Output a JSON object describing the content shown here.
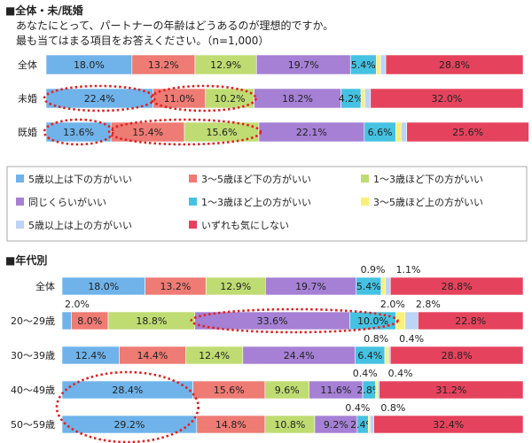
{
  "section1": {
    "heading": "■全体・未/既婚",
    "question_line1": "あなたにとって、パートナーの年齢はどうあるのが理想的ですか。",
    "question_line2": "最も当てはまる項目をお答えください。（n=1,000）"
  },
  "section2": {
    "heading": "■年代別"
  },
  "legend": [
    {
      "label": "5歳以上は下の方がいい",
      "color": "#6fb3ea"
    },
    {
      "label": "3〜5歳ほど下の方がいい",
      "color": "#ee7b74"
    },
    {
      "label": "1〜3歳ほど下の方がいい",
      "color": "#bfdc72"
    },
    {
      "label": "同じくらいがいい",
      "color": "#a580d4"
    },
    {
      "label": "1〜3歳ほど上の方がいい",
      "color": "#45c2e2"
    },
    {
      "label": "3〜5歳ほど上の方がいい",
      "color": "#f7f17a"
    },
    {
      "label": "5歳以上は上の方がいい",
      "color": "#bcd4f6"
    },
    {
      "label": "いずれも気にしない",
      "color": "#e5435d"
    }
  ],
  "chart_data": [
    {
      "type": "bar",
      "stacked": "100%",
      "orientation": "horizontal",
      "categories": [
        "全体",
        "未婚",
        "既婚"
      ],
      "series": [
        {
          "name": "5歳以上は下の方がいい",
          "values": [
            18.0,
            22.4,
            13.6
          ],
          "labels": [
            "18.0%",
            "22.4%",
            "13.6%"
          ]
        },
        {
          "name": "3〜5歳ほど下の方がいい",
          "values": [
            13.2,
            11.0,
            15.4
          ],
          "labels": [
            "13.2%",
            "11.0%",
            "15.4%"
          ]
        },
        {
          "name": "1〜3歳ほど下の方がいい",
          "values": [
            12.9,
            10.2,
            15.6
          ],
          "labels": [
            "12.9%",
            "10.2%",
            "15.6%"
          ]
        },
        {
          "name": "同じくらいがいい",
          "values": [
            19.7,
            18.2,
            22.1
          ],
          "labels": [
            "19.7%",
            "18.2%",
            "22.1%"
          ]
        },
        {
          "name": "1〜3歳ほど上の方がいい",
          "values": [
            5.4,
            4.2,
            6.6
          ],
          "labels": [
            "5.4%",
            "4.2%",
            "6.6%"
          ]
        },
        {
          "name": "3〜5歳ほど上の方がいい",
          "values": [
            0.9,
            0.8,
            1.1
          ],
          "labels": [
            "",
            "",
            ""
          ]
        },
        {
          "name": "5歳以上は上の方がいい",
          "values": [
            1.1,
            1.2,
            1.2
          ],
          "labels": [
            "",
            "",
            ""
          ]
        },
        {
          "name": "いずれも気にしない",
          "values": [
            28.8,
            32.0,
            25.6
          ],
          "labels": [
            "28.8%",
            "32.0%",
            "25.6%"
          ]
        }
      ],
      "highlights": [
        {
          "category": "未婚",
          "series": [
            "5歳以上は下の方がいい"
          ]
        },
        {
          "category": "未婚",
          "series": [
            "3〜5歳ほど下の方がいい",
            "1〜3歳ほど下の方がいい"
          ]
        },
        {
          "category": "既婚",
          "series": [
            "5歳以上は下の方がいい"
          ]
        },
        {
          "category": "既婚",
          "series": [
            "3〜5歳ほど下の方がいい",
            "1〜3歳ほど下の方がいい"
          ]
        }
      ]
    },
    {
      "type": "bar",
      "stacked": "100%",
      "orientation": "horizontal",
      "categories": [
        "全体",
        "20〜29歳",
        "30〜39歳",
        "40〜49歳",
        "50〜59歳"
      ],
      "series": [
        {
          "name": "5歳以上は下の方がいい",
          "values": [
            18.0,
            2.0,
            12.4,
            28.4,
            29.2
          ],
          "labels": [
            "18.0%",
            "",
            "12.4%",
            "28.4%",
            "29.2%"
          ]
        },
        {
          "name": "3〜5歳ほど下の方がいい",
          "values": [
            13.2,
            8.0,
            14.4,
            15.6,
            14.8
          ],
          "labels": [
            "13.2%",
            "8.0%",
            "14.4%",
            "15.6%",
            "14.8%"
          ]
        },
        {
          "name": "1〜3歳ほど下の方がいい",
          "values": [
            12.9,
            18.8,
            12.4,
            9.6,
            10.8
          ],
          "labels": [
            "12.9%",
            "18.8%",
            "12.4%",
            "9.6%",
            "10.8%"
          ]
        },
        {
          "name": "同じくらいがいい",
          "values": [
            19.7,
            33.6,
            24.4,
            11.6,
            9.2
          ],
          "labels": [
            "19.7%",
            "33.6%",
            "24.4%",
            "11.6%",
            "9.2%"
          ]
        },
        {
          "name": "1〜3歳ほど上の方がいい",
          "values": [
            5.4,
            10.0,
            6.4,
            2.8,
            2.4
          ],
          "labels": [
            "5.4%",
            "10.0%",
            "6.4%",
            "2.8%",
            "2.4%"
          ]
        },
        {
          "name": "3〜5歳ほど上の方がいい",
          "values": [
            0.9,
            2.0,
            0.8,
            0.4,
            0.4
          ],
          "labels": [
            "",
            "",
            "",
            "",
            ""
          ]
        },
        {
          "name": "5歳以上は上の方がいい",
          "values": [
            1.1,
            2.8,
            0.4,
            0.4,
            0.8
          ],
          "labels": [
            "",
            "",
            "",
            "",
            ""
          ]
        },
        {
          "name": "いずれも気にしない",
          "values": [
            28.8,
            22.8,
            28.8,
            31.2,
            32.4
          ],
          "labels": [
            "28.8%",
            "22.8%",
            "28.8%",
            "31.2%",
            "32.4%"
          ]
        }
      ],
      "callouts": [
        {
          "category": "全体",
          "texts": [
            "0.9%",
            "1.1%"
          ]
        },
        {
          "category": "20〜29歳",
          "texts": [
            "2.0%"
          ],
          "position": "left"
        },
        {
          "category": "20〜29歳",
          "texts": [
            "2.0%",
            "2.8%"
          ]
        },
        {
          "category": "30〜39歳",
          "texts": [
            "0.8%",
            "0.4%"
          ]
        },
        {
          "category": "40〜49歳",
          "texts": [
            "0.4%",
            "0.4%"
          ]
        },
        {
          "category": "50〜59歳",
          "texts": [
            "0.4%",
            "0.8%"
          ]
        }
      ],
      "highlights": [
        {
          "category": "20〜29歳",
          "series": [
            "同じくらいがいい",
            "1〜3歳ほど上の方がいい"
          ]
        },
        {
          "category": "40〜49歳",
          "series": [
            "5歳以上は下の方がいい"
          ],
          "span_to": "50〜59歳"
        }
      ]
    }
  ]
}
